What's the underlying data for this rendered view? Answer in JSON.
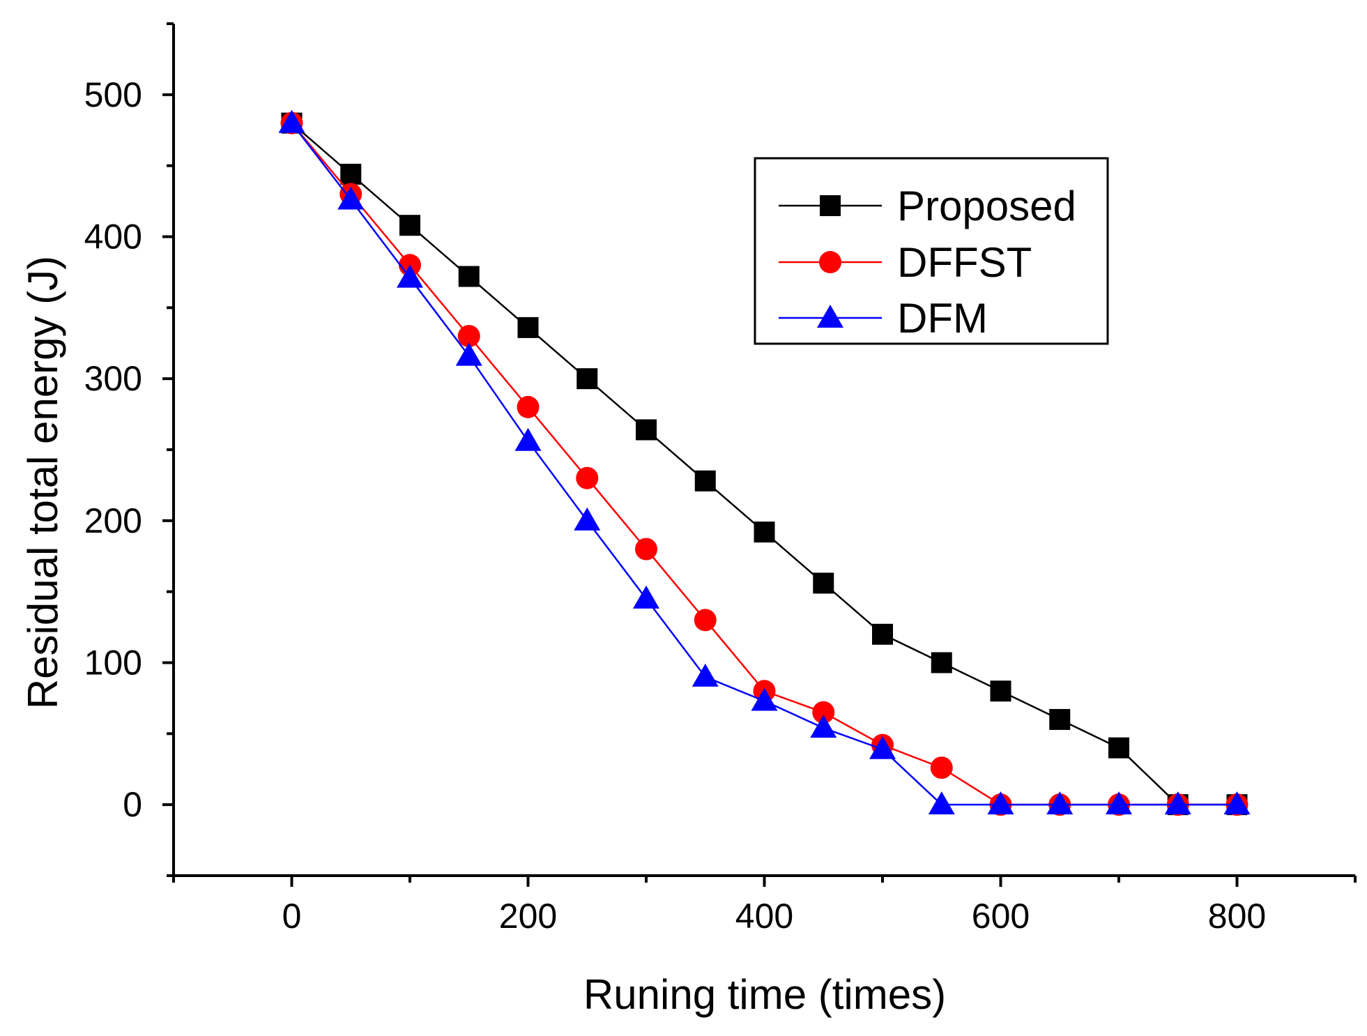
{
  "chart_data": {
    "type": "line",
    "title": "",
    "xlabel": "Runing time (times)",
    "ylabel": "Residual total energy (J)",
    "xlim": [
      -100,
      900
    ],
    "ylim": [
      -50,
      550
    ],
    "x_ticks": [
      0,
      200,
      400,
      600,
      800
    ],
    "y_ticks": [
      0,
      100,
      200,
      300,
      400,
      500
    ],
    "x_minor_step": 100,
    "y_minor_step": 50,
    "legend_position": "top-right",
    "x": [
      0,
      50,
      100,
      150,
      200,
      250,
      300,
      350,
      400,
      450,
      500,
      550,
      600,
      650,
      700,
      750,
      800
    ],
    "series": [
      {
        "name": "Proposed",
        "color": "#000000",
        "marker": "square",
        "values": [
          480,
          444,
          408,
          372,
          336,
          300,
          264,
          228,
          192,
          156,
          120,
          100,
          80,
          60,
          40,
          0,
          0
        ]
      },
      {
        "name": "DFFST",
        "color": "#ff0000",
        "marker": "circle",
        "values": [
          480,
          430,
          380,
          330,
          280,
          230,
          180,
          130,
          80,
          65,
          42,
          26,
          0,
          0,
          0,
          0,
          0
        ]
      },
      {
        "name": "DFM",
        "color": "#0000ff",
        "marker": "triangle",
        "values": [
          480,
          426,
          371,
          316,
          256,
          200,
          145,
          90,
          73,
          54,
          39,
          0,
          0,
          0,
          0,
          0,
          0
        ]
      }
    ]
  }
}
